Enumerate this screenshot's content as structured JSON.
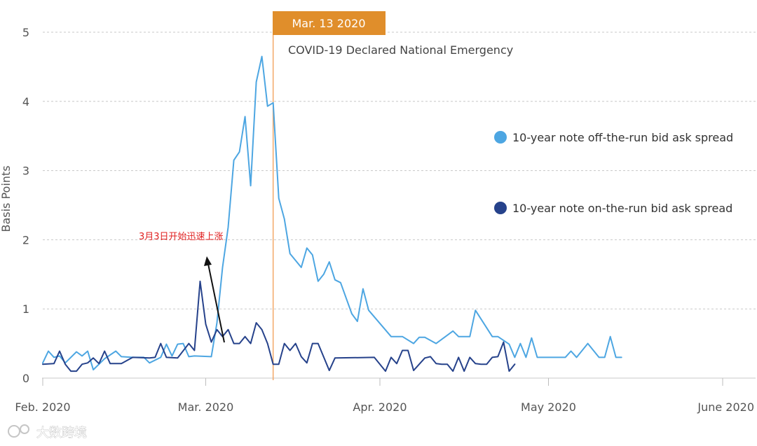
{
  "chart_data": {
    "type": "line",
    "ylabel": "Basis Points",
    "ylim": [
      0,
      5
    ],
    "yticks": [
      "0",
      "1",
      "2",
      "3",
      "4",
      "5"
    ],
    "xlim": [
      "2020-02-01",
      "2020-06-01"
    ],
    "xticks": [
      {
        "date": "2020-02-01",
        "label": "Feb. 2020"
      },
      {
        "date": "2020-03-01",
        "label": "Mar. 2020"
      },
      {
        "date": "2020-04-01",
        "label": "Apr. 2020"
      },
      {
        "date": "2020-05-01",
        "label": "May 2020"
      },
      {
        "date": "2020-06-01",
        "label": "June 2020"
      }
    ],
    "grid": "horizontal dashed",
    "legend_position": "right",
    "event": {
      "date": "2020-03-13",
      "date_label": "Mar. 13 2020",
      "label": "COVID-19 Declared National Emergency"
    },
    "annotation": {
      "text": "3月3日开始迅速上涨",
      "points_to": "2020-03-04"
    },
    "watermark": "大数跨境",
    "series": [
      {
        "name": "10-year note off-the-run bid ask spread",
        "color": "#4da6e2",
        "points": [
          [
            "2020-02-01",
            0.22
          ],
          [
            "2020-02-02",
            0.39
          ],
          [
            "2020-02-03",
            0.3
          ],
          [
            "2020-02-04",
            0.32
          ],
          [
            "2020-02-05",
            0.22
          ],
          [
            "2020-02-07",
            0.38
          ],
          [
            "2020-02-08",
            0.32
          ],
          [
            "2020-02-09",
            0.39
          ],
          [
            "2020-02-10",
            0.12
          ],
          [
            "2020-02-12",
            0.28
          ],
          [
            "2020-02-14",
            0.39
          ],
          [
            "2020-02-15",
            0.31
          ],
          [
            "2020-02-17",
            0.3
          ],
          [
            "2020-02-19",
            0.3
          ],
          [
            "2020-02-20",
            0.22
          ],
          [
            "2020-02-22",
            0.3
          ],
          [
            "2020-02-23",
            0.49
          ],
          [
            "2020-02-24",
            0.32
          ],
          [
            "2020-02-25",
            0.49
          ],
          [
            "2020-02-26",
            0.5
          ],
          [
            "2020-02-27",
            0.31
          ],
          [
            "2020-02-28",
            0.32
          ],
          [
            "2020-03-02",
            0.31
          ],
          [
            "2020-03-03",
            0.8
          ],
          [
            "2020-03-04",
            1.6
          ],
          [
            "2020-03-05",
            2.18
          ],
          [
            "2020-03-06",
            3.15
          ],
          [
            "2020-03-07",
            3.27
          ],
          [
            "2020-03-08",
            3.78
          ],
          [
            "2020-03-09",
            2.78
          ],
          [
            "2020-03-10",
            4.28
          ],
          [
            "2020-03-11",
            4.65
          ],
          [
            "2020-03-12",
            3.93
          ],
          [
            "2020-03-13",
            3.98
          ],
          [
            "2020-03-14",
            2.6
          ],
          [
            "2020-03-15",
            2.3
          ],
          [
            "2020-03-16",
            1.8
          ],
          [
            "2020-03-18",
            1.6
          ],
          [
            "2020-03-19",
            1.88
          ],
          [
            "2020-03-20",
            1.78
          ],
          [
            "2020-03-21",
            1.4
          ],
          [
            "2020-03-22",
            1.5
          ],
          [
            "2020-03-23",
            1.68
          ],
          [
            "2020-03-24",
            1.42
          ],
          [
            "2020-03-25",
            1.38
          ],
          [
            "2020-03-27",
            0.93
          ],
          [
            "2020-03-28",
            0.82
          ],
          [
            "2020-03-29",
            1.29
          ],
          [
            "2020-03-30",
            0.98
          ],
          [
            "2020-04-03",
            0.6
          ],
          [
            "2020-04-05",
            0.6
          ],
          [
            "2020-04-07",
            0.5
          ],
          [
            "2020-04-08",
            0.59
          ],
          [
            "2020-04-09",
            0.59
          ],
          [
            "2020-04-11",
            0.5
          ],
          [
            "2020-04-14",
            0.68
          ],
          [
            "2020-04-15",
            0.6
          ],
          [
            "2020-04-17",
            0.6
          ],
          [
            "2020-04-18",
            0.98
          ],
          [
            "2020-04-21",
            0.6
          ],
          [
            "2020-04-22",
            0.6
          ],
          [
            "2020-04-24",
            0.49
          ],
          [
            "2020-04-25",
            0.3
          ],
          [
            "2020-04-26",
            0.5
          ],
          [
            "2020-04-27",
            0.3
          ],
          [
            "2020-04-28",
            0.58
          ],
          [
            "2020-04-29",
            0.3
          ],
          [
            "2020-05-02",
            0.3
          ],
          [
            "2020-05-04",
            0.3
          ],
          [
            "2020-05-05",
            0.39
          ],
          [
            "2020-05-06",
            0.3
          ],
          [
            "2020-05-08",
            0.5
          ],
          [
            "2020-05-09",
            0.4
          ],
          [
            "2020-05-10",
            0.3
          ],
          [
            "2020-05-11",
            0.3
          ],
          [
            "2020-05-12",
            0.6
          ],
          [
            "2020-05-13",
            0.3
          ],
          [
            "2020-05-14",
            0.3
          ]
        ]
      },
      {
        "name": "10-year note on-the-run bid ask spread",
        "color": "#26428b",
        "points": [
          [
            "2020-02-01",
            0.2
          ],
          [
            "2020-02-03",
            0.21
          ],
          [
            "2020-02-04",
            0.39
          ],
          [
            "2020-02-05",
            0.2
          ],
          [
            "2020-02-06",
            0.1
          ],
          [
            "2020-02-07",
            0.1
          ],
          [
            "2020-02-08",
            0.2
          ],
          [
            "2020-02-09",
            0.22
          ],
          [
            "2020-02-10",
            0.29
          ],
          [
            "2020-02-11",
            0.21
          ],
          [
            "2020-02-12",
            0.39
          ],
          [
            "2020-02-13",
            0.21
          ],
          [
            "2020-02-15",
            0.21
          ],
          [
            "2020-02-17",
            0.3
          ],
          [
            "2020-02-20",
            0.29
          ],
          [
            "2020-02-21",
            0.3
          ],
          [
            "2020-02-22",
            0.5
          ],
          [
            "2020-02-23",
            0.3
          ],
          [
            "2020-02-25",
            0.29
          ],
          [
            "2020-02-27",
            0.5
          ],
          [
            "2020-02-28",
            0.4
          ],
          [
            "2020-02-29",
            1.4
          ],
          [
            "2020-03-01",
            0.78
          ],
          [
            "2020-03-02",
            0.52
          ],
          [
            "2020-03-03",
            0.7
          ],
          [
            "2020-03-04",
            0.6
          ],
          [
            "2020-03-05",
            0.7
          ],
          [
            "2020-03-06",
            0.5
          ],
          [
            "2020-03-07",
            0.5
          ],
          [
            "2020-03-08",
            0.6
          ],
          [
            "2020-03-09",
            0.5
          ],
          [
            "2020-03-10",
            0.8
          ],
          [
            "2020-03-11",
            0.7
          ],
          [
            "2020-03-12",
            0.5
          ],
          [
            "2020-03-13",
            0.2
          ],
          [
            "2020-03-14",
            0.2
          ],
          [
            "2020-03-15",
            0.5
          ],
          [
            "2020-03-16",
            0.4
          ],
          [
            "2020-03-17",
            0.5
          ],
          [
            "2020-03-18",
            0.31
          ],
          [
            "2020-03-19",
            0.22
          ],
          [
            "2020-03-20",
            0.5
          ],
          [
            "2020-03-21",
            0.5
          ],
          [
            "2020-03-23",
            0.11
          ],
          [
            "2020-03-24",
            0.29
          ],
          [
            "2020-03-31",
            0.3
          ],
          [
            "2020-04-02",
            0.1
          ],
          [
            "2020-04-03",
            0.3
          ],
          [
            "2020-04-04",
            0.21
          ],
          [
            "2020-04-05",
            0.4
          ],
          [
            "2020-04-06",
            0.4
          ],
          [
            "2020-04-07",
            0.11
          ],
          [
            "2020-04-08",
            0.2
          ],
          [
            "2020-04-09",
            0.29
          ],
          [
            "2020-04-10",
            0.31
          ],
          [
            "2020-04-11",
            0.21
          ],
          [
            "2020-04-12",
            0.2
          ],
          [
            "2020-04-13",
            0.2
          ],
          [
            "2020-04-14",
            0.1
          ],
          [
            "2020-04-15",
            0.3
          ],
          [
            "2020-04-16",
            0.1
          ],
          [
            "2020-04-17",
            0.3
          ],
          [
            "2020-04-18",
            0.21
          ],
          [
            "2020-04-19",
            0.2
          ],
          [
            "2020-04-20",
            0.2
          ],
          [
            "2020-04-21",
            0.3
          ],
          [
            "2020-04-22",
            0.31
          ],
          [
            "2020-04-23",
            0.52
          ],
          [
            "2020-04-24",
            0.1
          ],
          [
            "2020-04-25",
            0.2
          ]
        ]
      }
    ]
  }
}
